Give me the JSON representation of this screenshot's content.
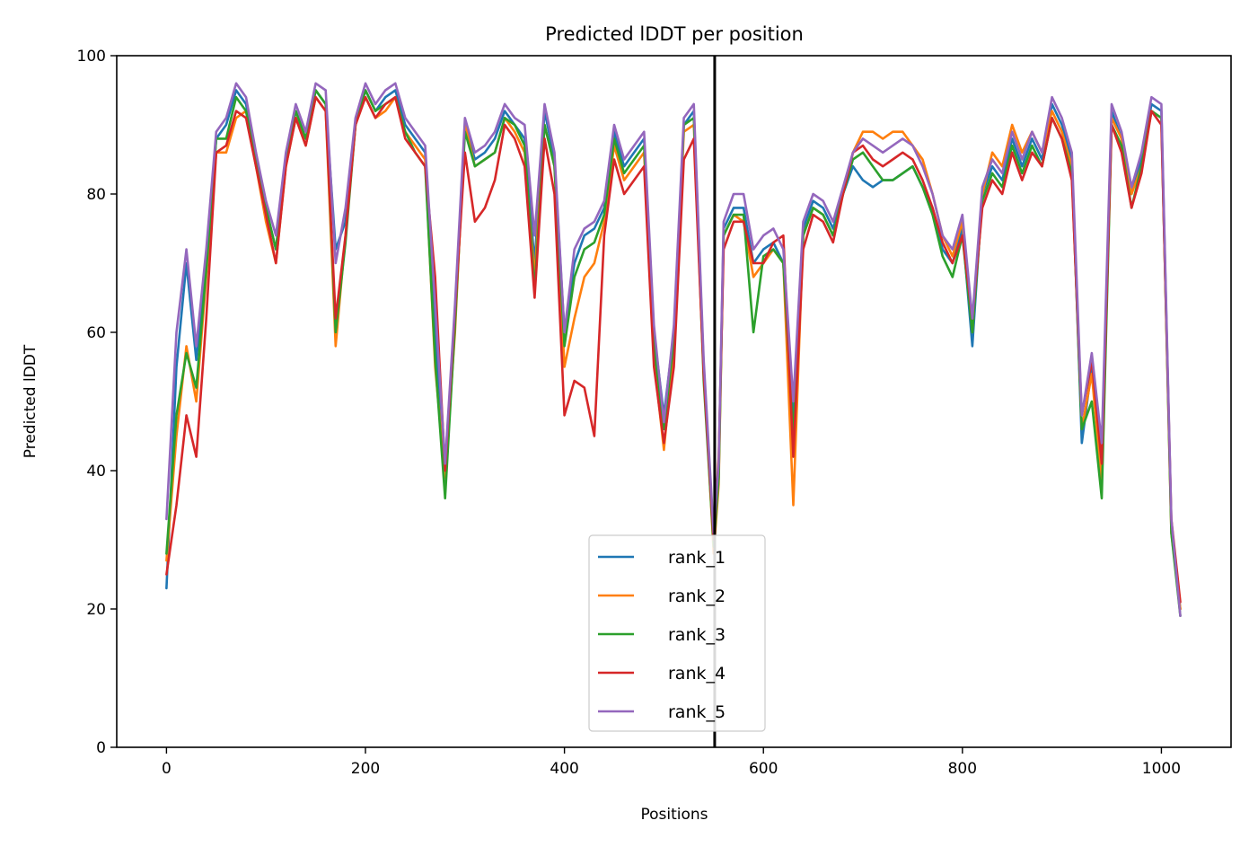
{
  "chart_data": {
    "type": "line",
    "title": "Predicted lDDT per position",
    "xlabel": "Positions",
    "ylabel": "Predicted lDDT",
    "xlim": [
      -50,
      1070
    ],
    "ylim": [
      0,
      100
    ],
    "xticks": [
      0,
      200,
      400,
      600,
      800,
      1000
    ],
    "yticks": [
      0,
      20,
      40,
      60,
      80,
      100
    ],
    "grid": false,
    "legend_position": "lower center",
    "vertical_line": {
      "x": 551,
      "color": "#000000"
    },
    "x": [
      0,
      10,
      20,
      30,
      40,
      50,
      60,
      70,
      80,
      90,
      100,
      110,
      120,
      130,
      140,
      150,
      160,
      170,
      180,
      190,
      200,
      210,
      220,
      230,
      240,
      250,
      260,
      270,
      280,
      290,
      300,
      310,
      320,
      330,
      340,
      350,
      360,
      370,
      380,
      390,
      400,
      410,
      420,
      430,
      440,
      450,
      460,
      470,
      480,
      490,
      500,
      510,
      520,
      530,
      540,
      550,
      555,
      560,
      570,
      580,
      590,
      600,
      610,
      620,
      630,
      640,
      650,
      660,
      670,
      680,
      690,
      700,
      710,
      720,
      730,
      740,
      750,
      760,
      770,
      780,
      790,
      800,
      810,
      820,
      830,
      840,
      850,
      860,
      870,
      880,
      890,
      900,
      910,
      920,
      930,
      940,
      950,
      960,
      970,
      980,
      990,
      1000,
      1010,
      1019
    ],
    "series": [
      {
        "name": "rank_1",
        "color": "#1f77b4",
        "values": [
          23,
          55,
          70,
          56,
          70,
          88,
          90,
          95,
          93,
          85,
          78,
          72,
          85,
          92,
          88,
          95,
          93,
          72,
          76,
          90,
          95,
          92,
          94,
          95,
          90,
          88,
          86,
          60,
          40,
          62,
          90,
          85,
          86,
          88,
          92,
          90,
          88,
          70,
          92,
          85,
          60,
          70,
          74,
          75,
          78,
          89,
          84,
          86,
          88,
          60,
          48,
          60,
          90,
          92,
          55,
          30,
          40,
          75,
          78,
          78,
          70,
          72,
          73,
          70,
          48,
          75,
          79,
          78,
          75,
          80,
          84,
          82,
          81,
          82,
          82,
          83,
          84,
          81,
          78,
          72,
          70,
          75,
          58,
          80,
          84,
          82,
          88,
          84,
          88,
          85,
          93,
          90,
          85,
          44,
          55,
          40,
          92,
          88,
          80,
          85,
          93,
          92,
          32,
          20
        ]
      },
      {
        "name": "rank_2",
        "color": "#ff7f0e",
        "values": [
          27,
          45,
          58,
          50,
          68,
          86,
          86,
          91,
          92,
          84,
          76,
          70,
          84,
          91,
          87,
          94,
          92,
          58,
          74,
          90,
          94,
          91,
          92,
          94,
          89,
          87,
          85,
          55,
          39,
          60,
          90,
          84,
          85,
          86,
          91,
          89,
          86,
          68,
          90,
          84,
          55,
          62,
          68,
          70,
          76,
          87,
          82,
          84,
          86,
          56,
          43,
          58,
          89,
          90,
          55,
          28,
          38,
          74,
          77,
          76,
          68,
          70,
          72,
          70,
          35,
          74,
          78,
          77,
          74,
          80,
          86,
          89,
          89,
          88,
          89,
          89,
          87,
          85,
          80,
          74,
          71,
          76,
          60,
          80,
          86,
          84,
          90,
          86,
          89,
          86,
          92,
          89,
          84,
          46,
          54,
          38,
          91,
          88,
          80,
          84,
          92,
          91,
          31,
          20
        ]
      },
      {
        "name": "rank_3",
        "color": "#2ca02c",
        "values": [
          28,
          48,
          57,
          52,
          69,
          88,
          88,
          94,
          92,
          85,
          78,
          72,
          85,
          92,
          88,
          95,
          93,
          60,
          73,
          90,
          95,
          92,
          93,
          94,
          89,
          86,
          84,
          56,
          36,
          61,
          89,
          84,
          85,
          86,
          91,
          90,
          87,
          66,
          90,
          84,
          58,
          68,
          72,
          73,
          77,
          88,
          83,
          85,
          87,
          58,
          46,
          59,
          90,
          91,
          53,
          29,
          39,
          74,
          77,
          77,
          60,
          71,
          72,
          70,
          45,
          74,
          78,
          77,
          74,
          80,
          85,
          86,
          84,
          82,
          82,
          83,
          84,
          81,
          77,
          71,
          68,
          74,
          60,
          79,
          83,
          81,
          87,
          83,
          87,
          84,
          91,
          88,
          83,
          46,
          50,
          36,
          90,
          87,
          78,
          84,
          92,
          91,
          31,
          19
        ]
      },
      {
        "name": "rank_4",
        "color": "#d62728",
        "values": [
          25,
          35,
          48,
          42,
          62,
          86,
          87,
          92,
          91,
          84,
          77,
          70,
          84,
          91,
          87,
          94,
          92,
          62,
          74,
          90,
          94,
          91,
          93,
          94,
          88,
          86,
          84,
          68,
          40,
          63,
          86,
          76,
          78,
          82,
          90,
          88,
          84,
          65,
          88,
          80,
          48,
          53,
          52,
          45,
          74,
          85,
          80,
          82,
          84,
          55,
          44,
          55,
          85,
          88,
          54,
          30,
          42,
          72,
          76,
          76,
          70,
          70,
          73,
          74,
          42,
          72,
          77,
          76,
          73,
          80,
          86,
          87,
          85,
          84,
          85,
          86,
          85,
          82,
          78,
          73,
          70,
          74,
          62,
          78,
          82,
          80,
          86,
          82,
          86,
          84,
          91,
          88,
          82,
          48,
          56,
          41,
          90,
          86,
          78,
          83,
          92,
          90,
          33,
          21
        ]
      },
      {
        "name": "rank_5",
        "color": "#9467bd",
        "values": [
          33,
          60,
          72,
          58,
          72,
          89,
          91,
          96,
          94,
          86,
          79,
          74,
          86,
          93,
          89,
          96,
          95,
          70,
          78,
          91,
          96,
          93,
          95,
          96,
          91,
          89,
          87,
          64,
          41,
          64,
          91,
          86,
          87,
          89,
          93,
          91,
          90,
          74,
          93,
          86,
          60,
          72,
          75,
          76,
          79,
          90,
          85,
          87,
          89,
          61,
          47,
          61,
          91,
          93,
          56,
          31,
          41,
          76,
          80,
          80,
          72,
          74,
          75,
          72,
          50,
          76,
          80,
          79,
          76,
          81,
          86,
          88,
          87,
          86,
          87,
          88,
          87,
          84,
          80,
          74,
          72,
          77,
          62,
          81,
          85,
          83,
          89,
          85,
          89,
          86,
          94,
          91,
          86,
          48,
          57,
          44,
          93,
          89,
          81,
          86,
          94,
          93,
          33,
          19
        ]
      }
    ]
  }
}
